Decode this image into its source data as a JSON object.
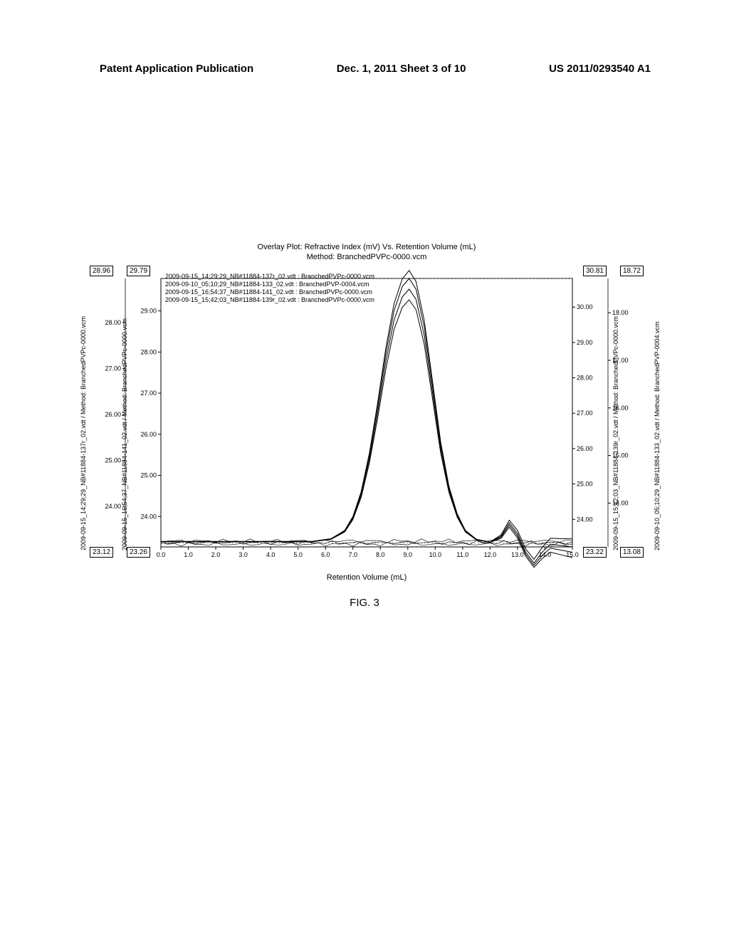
{
  "header": {
    "left": "Patent Application Publication",
    "center": "Dec. 1, 2011  Sheet 3 of 10",
    "right": "US 2011/0293540 A1"
  },
  "figure_caption": "FIG. 3",
  "chart": {
    "title_line1": "Overlay Plot: Refractive Index (mV) Vs. Retention Volume (mL)",
    "title_line2": "Method: BranchedPVPc-0000.vcm",
    "xlabel": "Retention Volume (mL)",
    "xlim": [
      0.0,
      15.0
    ],
    "xtick_step": 1.0,
    "xtick_labels": [
      "0.0",
      "1.0",
      "2.0",
      "3.0",
      "4.0",
      "5.0",
      "6.0",
      "7.0",
      "8.0",
      "9.0",
      "10.0",
      "11.0",
      "12.0",
      "13.0",
      "14.0",
      "15.0"
    ],
    "y_axes": {
      "left_outer": {
        "label": "2009-09-15_14;29;29_NB#11884-137r_02.vdt / Method: BranchedPVPc-0000.vcm",
        "min": 23.12,
        "max": 28.96,
        "ticks": [
          "24.00",
          "25.00",
          "26.00",
          "27.00",
          "28.00"
        ]
      },
      "left_inner": {
        "label": "2009-09-15_16;54;37_NB#11884-141_02.vdt / Method: BranchedPVPc-0000.vcm",
        "min": 23.26,
        "max": 29.79,
        "ticks": [
          "24.00",
          "25.00",
          "26.00",
          "27.00",
          "28.00",
          "29.00"
        ]
      },
      "right_outer": {
        "label": "2009-09-10_05;10;29_NB#11884-133_02.vdt / Method: BranchedPVP-0004.vcm",
        "min": 13.08,
        "max": 18.72,
        "ticks": [
          "14.00",
          "15.00",
          "16.00",
          "17.00",
          "18.00"
        ]
      },
      "right_inner": {
        "label": "2009-09-15_15;42;03_NB#11884-139r_02.vdt / Method: BranchedPVPc-0000.vcm",
        "min": 23.22,
        "max": 30.81,
        "ticks": [
          "24.00",
          "25.00",
          "26.00",
          "27.00",
          "28.00",
          "29.00",
          "30.00"
        ]
      }
    },
    "legend_lines": [
      "2009-09-15_14;29;29_NB#11884-137r_02.vdt : BranchedPVPc-0000.vcm",
      "2009-09-10_05;10;29_NB#11884-133_02.vdt : BranchedPVP-0004.vcm",
      "2009-09-15_16;54;37_NB#11884-141_02.vdt : BranchedPVPc-0000.vcm",
      "2009-09-15_15;42;03_NB#11884-139r_02.vdt : BranchedPVPc-0000.vcm"
    ],
    "line_color": "#000000",
    "background_color": "#ffffff",
    "border_color": "#000000",
    "grid_dash": "2,3",
    "grid_color": "#777777",
    "series": [
      {
        "name": "s1",
        "offset": 0.0,
        "amp": 1.0,
        "tail": 0.0
      },
      {
        "name": "s2",
        "offset": 0.02,
        "amp": 0.96,
        "tail": -0.02
      },
      {
        "name": "s3",
        "offset": -0.03,
        "amp": 1.03,
        "tail": 0.03
      },
      {
        "name": "s4",
        "offset": 0.04,
        "amp": 0.92,
        "tail": -0.04
      }
    ],
    "curve_base": [
      [
        0.0,
        0.02
      ],
      [
        4.0,
        0.02
      ],
      [
        5.5,
        0.02
      ],
      [
        6.2,
        0.03
      ],
      [
        6.7,
        0.06
      ],
      [
        7.0,
        0.11
      ],
      [
        7.3,
        0.2
      ],
      [
        7.6,
        0.34
      ],
      [
        7.9,
        0.52
      ],
      [
        8.2,
        0.72
      ],
      [
        8.5,
        0.88
      ],
      [
        8.8,
        0.97
      ],
      [
        9.05,
        1.0
      ],
      [
        9.3,
        0.96
      ],
      [
        9.6,
        0.82
      ],
      [
        9.9,
        0.6
      ],
      [
        10.2,
        0.38
      ],
      [
        10.5,
        0.22
      ],
      [
        10.8,
        0.12
      ],
      [
        11.1,
        0.06
      ],
      [
        11.5,
        0.028
      ],
      [
        12.0,
        0.018
      ],
      [
        12.4,
        0.04
      ],
      [
        12.7,
        0.09
      ],
      [
        13.0,
        0.05
      ],
      [
        13.3,
        -0.02
      ],
      [
        13.6,
        -0.06
      ],
      [
        13.9,
        -0.02
      ],
      [
        14.2,
        0.01
      ],
      [
        14.6,
        0.005
      ],
      [
        15.0,
        0.0
      ]
    ],
    "baseline_y": 0.015
  }
}
